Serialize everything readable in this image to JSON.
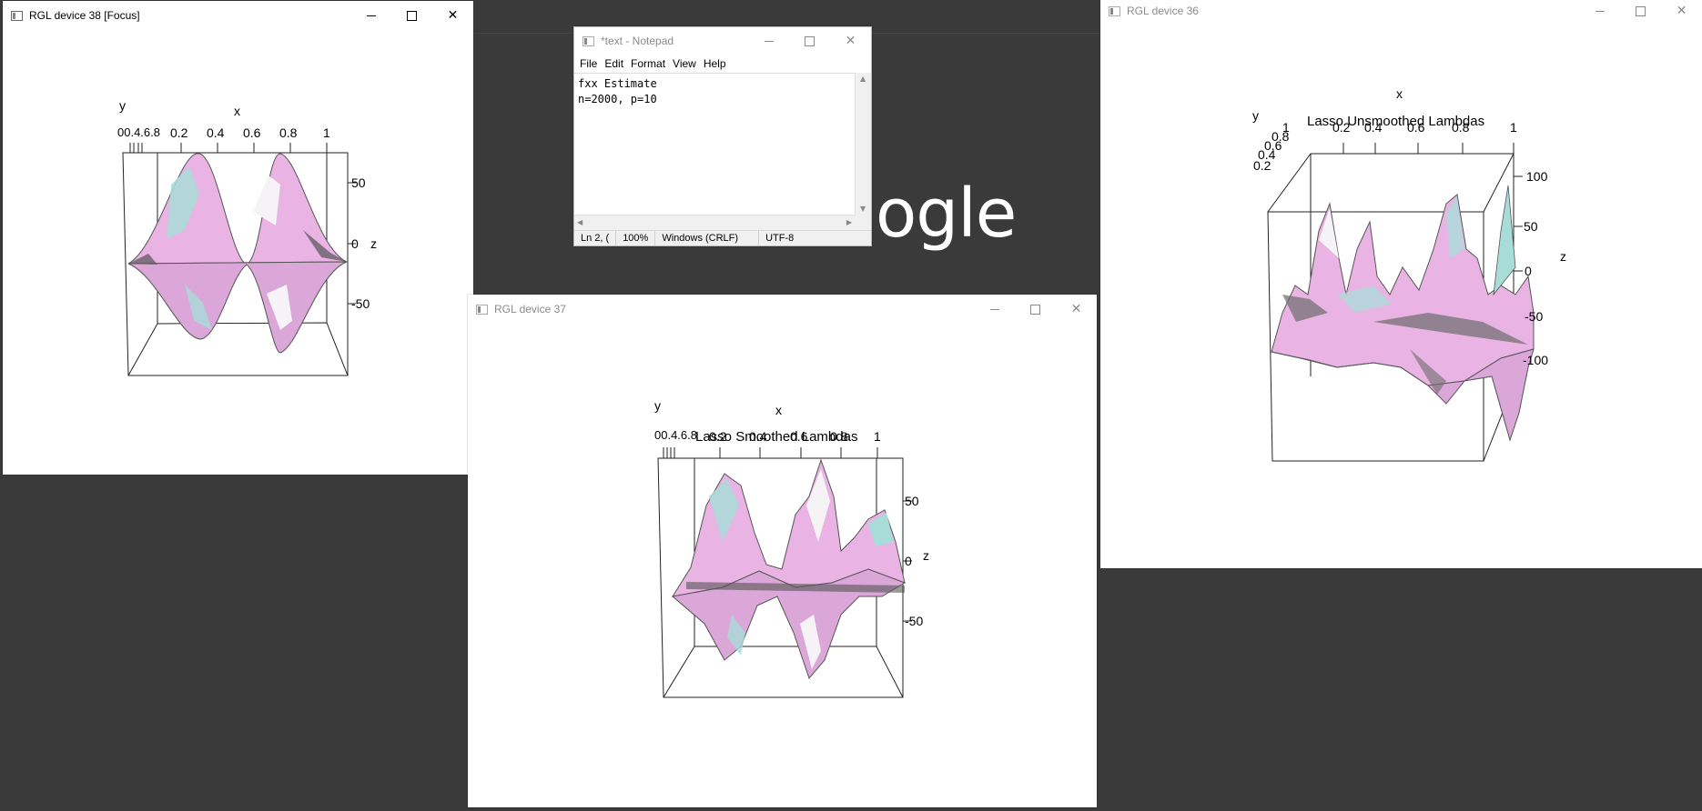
{
  "background_text": "ogle",
  "windows": {
    "rgl38": {
      "title": "RGL device 38 [Focus]",
      "plot": {
        "y_label": "y",
        "x_label": "x",
        "z_label": "z",
        "x_ticks": [
          "0.2",
          "0.4",
          "0.6",
          "0.8",
          "1"
        ],
        "x_tick_prefix": "00.4.6.8",
        "z_ticks": [
          "50",
          "0",
          "-50"
        ]
      }
    },
    "notepad": {
      "title": "*text - Notepad",
      "menu": [
        "File",
        "Edit",
        "Format",
        "View",
        "Help"
      ],
      "content_line1": "fxx Estimate",
      "content_line2": "n=2000, p=10",
      "status": {
        "position": "Ln 2, (",
        "zoom": "100%",
        "line_ending": "Windows (CRLF)",
        "encoding": "UTF-8"
      }
    },
    "rgl37": {
      "title": "RGL device 37",
      "plot": {
        "title": "Lasso Smoothed Lambdas",
        "y_label": "y",
        "x_label": "x",
        "z_label": "z",
        "x_ticks": [
          "0.2",
          "0.4",
          "0.6",
          "0.8",
          "1"
        ],
        "x_tick_prefix": "00.4.6.8",
        "z_ticks": [
          "50",
          "0",
          "-50"
        ]
      }
    },
    "rgl36": {
      "title": "RGL device 36",
      "plot": {
        "title": "Lasso Unsmoothed Lambdas",
        "y_label": "y",
        "x_label": "x",
        "z_label": "z",
        "x_ticks": [
          "0.2",
          "0.4",
          "0.6",
          "0.8",
          "1"
        ],
        "y_ticks": [
          "1",
          "0.8",
          "0.6",
          "0.4",
          "0.2"
        ],
        "z_ticks": [
          "100",
          "50",
          "0",
          "-50",
          "-100"
        ]
      }
    }
  },
  "colors": {
    "surface_pink": "#e6a8e0",
    "surface_teal": "#a8dcd8",
    "surface_white": "#f6f3f6",
    "surface_gray": "#6c6c6c",
    "desktop": "#3a3a3a"
  }
}
